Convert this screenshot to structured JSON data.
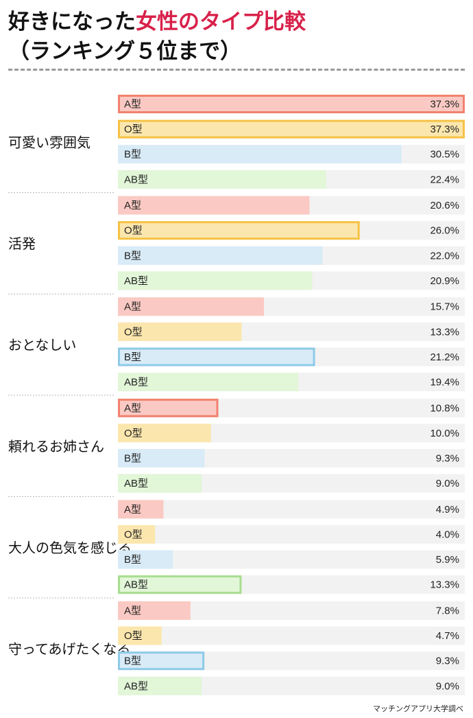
{
  "title": {
    "part1": "好きになった",
    "part2": "女性のタイプ比較",
    "line2": "（ランキング５位まで）"
  },
  "footer": "マッチングアプリ大学調べ",
  "colors": {
    "A型": "#fbc9c3",
    "O型": "#fbe6ad",
    "B型": "#d8ebf7",
    "AB型": "#e2f6d8",
    "track": "#f2f2f2",
    "highlight_A型": "#f0826e",
    "highlight_O型": "#f6c244",
    "highlight_B型": "#8ecae8",
    "highlight_AB型": "#a8dd90",
    "title_accent": "#d8214a"
  },
  "chart_data": {
    "type": "bar",
    "orientation": "horizontal",
    "unit": "%",
    "series_names": [
      "A型",
      "O型",
      "B型",
      "AB型"
    ],
    "xlim": [
      0,
      37.3
    ],
    "groups": [
      {
        "category": "可愛い雰囲気",
        "values": [
          37.3,
          37.3,
          30.5,
          22.4
        ],
        "labels": [
          "37.3%",
          "37.3%",
          "30.5%",
          "22.4%"
        ],
        "highlighted": [
          "A型",
          "O型"
        ]
      },
      {
        "category": "活発",
        "values": [
          20.6,
          26.0,
          22.0,
          20.9
        ],
        "labels": [
          "20.6%",
          "26.0%",
          "22.0%",
          "20.9%"
        ],
        "highlighted": [
          "O型"
        ]
      },
      {
        "category": "おとなしい",
        "values": [
          15.7,
          13.3,
          21.2,
          19.4
        ],
        "labels": [
          "15.7%",
          "13.3%",
          "21.2%",
          "19.4%"
        ],
        "highlighted": [
          "B型"
        ]
      },
      {
        "category": "頼れるお姉さん",
        "values": [
          10.8,
          10.0,
          9.3,
          9.0
        ],
        "labels": [
          "10.8%",
          "10.0%",
          "9.3%",
          "9.0%"
        ],
        "highlighted": [
          "A型"
        ]
      },
      {
        "category": "大人の色気を感じる",
        "values": [
          4.9,
          4.0,
          5.9,
          13.3
        ],
        "labels": [
          "4.9%",
          "4.0%",
          "5.9%",
          "13.3%"
        ],
        "highlighted": [
          "AB型"
        ]
      },
      {
        "category": "守ってあげたくなる",
        "values": [
          7.8,
          4.7,
          9.3,
          9.0
        ],
        "labels": [
          "7.8%",
          "4.7%",
          "9.3%",
          "9.0%"
        ],
        "highlighted": [
          "B型"
        ]
      }
    ]
  }
}
